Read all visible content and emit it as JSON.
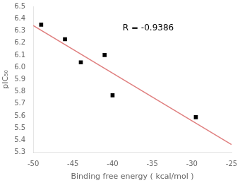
{
  "chart_data": {
    "type": "scatter",
    "xlabel": "Binding free energy ( kcal/mol )",
    "ylabel": "pIC₅₀",
    "series": [
      {
        "type": "scatter",
        "color": "#000000",
        "marker": "square",
        "x": [
          -49.0,
          -46.0,
          -44.0,
          -41.0,
          -40.0,
          -29.5
        ],
        "values": [
          6.35,
          6.23,
          6.04,
          6.1,
          5.77,
          5.59
        ]
      },
      {
        "type": "line",
        "color": "#e08080",
        "line_style": "solid",
        "x": [
          -50,
          -25
        ],
        "values": [
          6.3427,
          5.3645
        ]
      }
    ],
    "annotations": [
      {
        "text": "R = -0.9386",
        "x": -35.5,
        "y": 6.32
      }
    ],
    "xlim": [
      -50,
      -25
    ],
    "ylim": [
      5.3,
      6.5
    ],
    "xticks": [
      -50,
      -45,
      -40,
      -35,
      -30,
      -25
    ],
    "yticks": [
      5.3,
      5.4,
      5.5,
      5.6,
      5.7,
      5.8,
      5.9,
      {
        "value": 6.0,
        "label": "6.0"
      },
      6.1,
      6.2,
      6.3,
      6.4,
      6.5
    ],
    "grid": false
  }
}
